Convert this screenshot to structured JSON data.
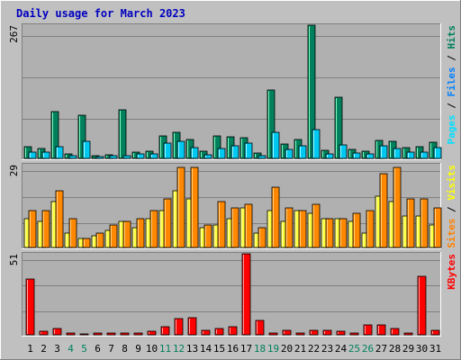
{
  "title": "Daily usage for March 2023",
  "colors": {
    "background": "#c0c0c0",
    "plot": "#b0b0b0",
    "hits": "#00805c",
    "files": "#00d0f0",
    "pages": "#00c8e8",
    "visits": "#ffff00",
    "sites": "#ff8000",
    "kbytes": "#ff0000",
    "title": "#0000c0",
    "weekend_day": "#00805c",
    "weekday": "#000000"
  },
  "chart_data": [
    {
      "type": "bar",
      "panel": "hits-files-pages",
      "ymax_label": "267",
      "ylim": [
        0,
        267
      ],
      "legend": [
        {
          "name": "Pages",
          "color": "#00e0ff"
        },
        {
          "name": "Files",
          "color": "#0080ff"
        },
        {
          "name": "Hits",
          "color": "#00805c"
        }
      ],
      "series": [
        {
          "name": "Hits",
          "values": [
            23,
            20,
            93,
            9,
            87,
            6,
            8,
            97,
            12,
            14,
            45,
            52,
            38,
            15,
            45,
            43,
            42,
            10,
            138,
            28,
            38,
            267,
            17,
            122,
            18,
            14,
            36,
            35,
            22,
            24,
            33
          ]
        },
        {
          "name": "Files",
          "values": [
            13,
            12,
            23,
            5,
            34,
            4,
            5,
            6,
            9,
            9,
            31,
            35,
            22,
            8,
            20,
            26,
            31,
            6,
            52,
            18,
            25,
            58,
            9,
            27,
            11,
            9,
            25,
            20,
            12,
            12,
            21
          ]
        }
      ]
    },
    {
      "type": "bar",
      "panel": "sites-visits",
      "ymax_label": "29",
      "ylim": [
        0,
        29
      ],
      "legend": [
        {
          "name": "Sites",
          "color": "#ff8000"
        },
        {
          "name": "Visits",
          "color": "#ffff00"
        }
      ],
      "series": [
        {
          "name": "Visits",
          "values": [
            10,
            9,
            16,
            5,
            3,
            4,
            6,
            9,
            7,
            10,
            13,
            20,
            17,
            7,
            8,
            10,
            14,
            5,
            13,
            9,
            13,
            12,
            10,
            10,
            9,
            5,
            18,
            16,
            11,
            11,
            8
          ]
        },
        {
          "name": "Sites",
          "values": [
            13,
            13,
            20,
            10,
            3,
            5,
            8,
            9,
            10,
            13,
            17,
            28,
            28,
            8,
            16,
            14,
            15,
            7,
            21,
            14,
            13,
            15,
            10,
            10,
            12,
            13,
            26,
            28,
            17,
            17,
            14
          ]
        }
      ]
    },
    {
      "type": "bar",
      "panel": "kbytes",
      "ymax_label": "51",
      "ylim": [
        0,
        51
      ],
      "legend": [
        {
          "name": "KBytes",
          "color": "#ff0000"
        }
      ],
      "series": [
        {
          "name": "KBytes",
          "values": [
            35,
            2,
            4,
            1,
            0,
            1,
            1,
            1,
            1,
            2,
            5,
            10,
            11,
            3,
            4,
            5,
            51,
            9,
            1,
            3,
            1,
            3,
            3,
            2,
            1,
            6,
            6,
            4,
            1,
            37,
            3
          ]
        }
      ]
    }
  ],
  "x_labels": [
    "1",
    "2",
    "3",
    "4",
    "5",
    "6",
    "7",
    "8",
    "9",
    "10",
    "11",
    "12",
    "13",
    "14",
    "15",
    "16",
    "17",
    "18",
    "19",
    "20",
    "21",
    "22",
    "23",
    "24",
    "25",
    "26",
    "27",
    "28",
    "29",
    "30",
    "31"
  ],
  "weekend_days": [
    "4",
    "5",
    "11",
    "12",
    "18",
    "19",
    "25",
    "26"
  ]
}
